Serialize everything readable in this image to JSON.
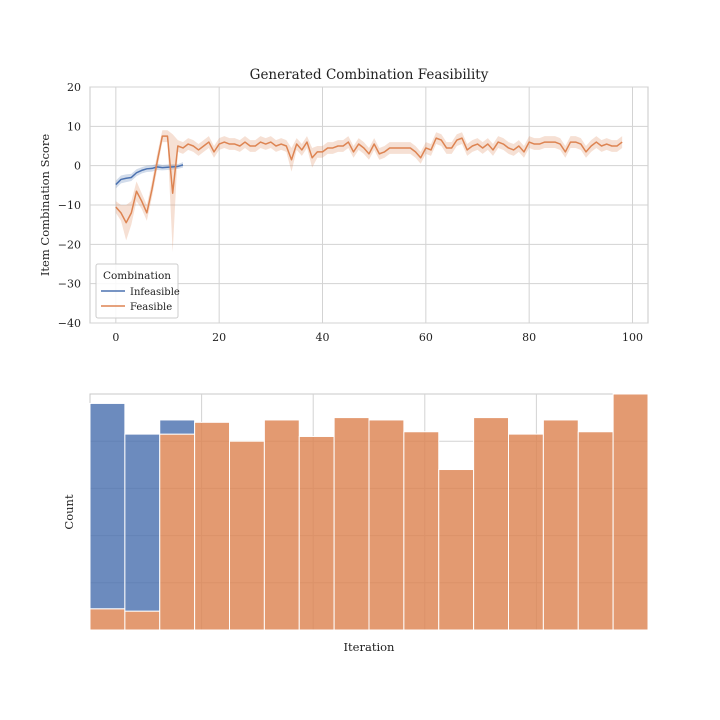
{
  "colors": {
    "infeasible": "#4c72b0",
    "feasible": "#dd8452",
    "grid": "#d3d3d3",
    "frame": "#c8c8c8"
  },
  "chart_data": [
    {
      "type": "line",
      "title": "Generated Combination Feasibility",
      "xlabel": "",
      "ylabel": "Item Combination Score",
      "xlim": [
        -5,
        103
      ],
      "ylim": [
        -40,
        20
      ],
      "xticks": [
        "0",
        "20",
        "40",
        "60",
        "80",
        "100"
      ],
      "xtick_values": [
        0,
        20,
        40,
        60,
        80,
        100
      ],
      "yticks": [
        "20",
        "10",
        "0",
        "−10",
        "−20",
        "−30",
        "−40"
      ],
      "ytick_values": [
        20,
        10,
        0,
        -10,
        -20,
        -30,
        -40
      ],
      "grid": true,
      "legend": {
        "title": "Combination",
        "placement": "lower-left",
        "entries": [
          "Infeasible",
          "Feasible"
        ]
      },
      "series": [
        {
          "name": "Infeasible",
          "color": "#4c72b0",
          "x": [
            0,
            1,
            2,
            3,
            4,
            5,
            6,
            7,
            8,
            9,
            10,
            11,
            12,
            13
          ],
          "y": [
            -4.8,
            -3.5,
            -3.2,
            -3.0,
            -1.8,
            -1.2,
            -0.8,
            -0.7,
            -0.3,
            -0.5,
            -0.4,
            -0.3,
            -0.2,
            0.2
          ],
          "ci_low": [
            -5.8,
            -4.5,
            -4.2,
            -3.9,
            -2.7,
            -2.0,
            -1.6,
            -1.5,
            -1.1,
            -1.2,
            -1.1,
            -1.0,
            -0.8,
            -0.5
          ],
          "ci_high": [
            -3.8,
            -2.5,
            -2.2,
            -2.1,
            -0.9,
            -0.4,
            0.0,
            0.1,
            0.5,
            0.2,
            0.3,
            0.4,
            0.4,
            0.9
          ]
        },
        {
          "name": "Feasible",
          "color": "#dd8452",
          "x": [
            0,
            1,
            2,
            3,
            4,
            5,
            6,
            7,
            8,
            9,
            10,
            11,
            12,
            13,
            14,
            15,
            16,
            17,
            18,
            19,
            20,
            21,
            22,
            23,
            24,
            25,
            26,
            27,
            28,
            29,
            30,
            31,
            32,
            33,
            34,
            35,
            36,
            37,
            38,
            39,
            40,
            41,
            42,
            43,
            44,
            45,
            46,
            47,
            48,
            49,
            50,
            51,
            52,
            53,
            54,
            55,
            56,
            57,
            58,
            59,
            60,
            61,
            62,
            63,
            64,
            65,
            66,
            67,
            68,
            69,
            70,
            71,
            72,
            73,
            74,
            75,
            76,
            77,
            78,
            79,
            80,
            81,
            82,
            83,
            84,
            85,
            86,
            87,
            88,
            89,
            90,
            91,
            92,
            93,
            94,
            95,
            96,
            97,
            98
          ],
          "y": [
            -10.5,
            -12,
            -14.5,
            -12,
            -6.5,
            -9,
            -12,
            -6,
            1,
            7.5,
            7.5,
            -7,
            5,
            4.5,
            5.5,
            5,
            4,
            5,
            6,
            3.5,
            5.5,
            6,
            5.5,
            5.5,
            5,
            6,
            5,
            5,
            6,
            5.5,
            6,
            5,
            5.5,
            5,
            1.5,
            5.5,
            4,
            6,
            2,
            3.5,
            3.5,
            4.5,
            4.5,
            5,
            5,
            6,
            3.5,
            5.5,
            4.5,
            3,
            5.5,
            3,
            3.5,
            4.5,
            4.5,
            4.5,
            4.5,
            4.5,
            3.5,
            2,
            4.5,
            4,
            7,
            6.5,
            4.5,
            4.5,
            6.5,
            7,
            4,
            5,
            5.5,
            4.5,
            5.5,
            4,
            6,
            5.5,
            4.5,
            4,
            5,
            3.5,
            6,
            5.5,
            5.5,
            6,
            6,
            6,
            5.5,
            3.5,
            6,
            6,
            5.5,
            3.5,
            5,
            6,
            5,
            5.5,
            5,
            5,
            6
          ],
          "ci_low": [
            -12,
            -14,
            -19,
            -15,
            -9,
            -11,
            -14,
            -8,
            -1,
            6,
            6,
            -22,
            3.5,
            3,
            4,
            3.5,
            2.5,
            3.5,
            4.5,
            2,
            4,
            4.5,
            4,
            4,
            3.5,
            4.5,
            3.5,
            3.5,
            4.5,
            4,
            4.5,
            3.5,
            4,
            3.5,
            -1.5,
            4,
            2.5,
            4.5,
            -0.5,
            2,
            2,
            3,
            3,
            3.5,
            3.5,
            4.5,
            2,
            4,
            3,
            1.5,
            4,
            1.5,
            2,
            3,
            3,
            3,
            3,
            3,
            2,
            0.5,
            3,
            2.5,
            5.5,
            5,
            3,
            3,
            5,
            5.5,
            2.5,
            3.5,
            4,
            3,
            4,
            2.5,
            4.5,
            4,
            3,
            2.5,
            3.5,
            2,
            4.5,
            4,
            4,
            4.5,
            4.5,
            4.5,
            4,
            2,
            4.5,
            4.5,
            4,
            2,
            3.5,
            4.5,
            3.5,
            4,
            3.5,
            3.5,
            4.5
          ],
          "ci_high": [
            -9,
            -10,
            -10,
            -9,
            -4,
            -7,
            -10,
            -4,
            3,
            9,
            9,
            8,
            6.5,
            6,
            7,
            6.5,
            5.5,
            6.5,
            7.5,
            5,
            7,
            7.5,
            7,
            7,
            6.5,
            7.5,
            6.5,
            6.5,
            7.5,
            7,
            7.5,
            6.5,
            7,
            6.5,
            4.5,
            7,
            5.5,
            7.5,
            4.5,
            5,
            5,
            6,
            6,
            6.5,
            6.5,
            7.5,
            5,
            7,
            6,
            4.5,
            7,
            4.5,
            5,
            6,
            6,
            6,
            6,
            6,
            5,
            3.5,
            6,
            5.5,
            8.5,
            8,
            6,
            6,
            8,
            8.5,
            5.5,
            6.5,
            7,
            6,
            7,
            5.5,
            7.5,
            7,
            6,
            5.5,
            6.5,
            5,
            7.5,
            7,
            7,
            7.5,
            7.5,
            7.5,
            7,
            5,
            7.5,
            7.5,
            7,
            5,
            6.5,
            7.5,
            6.5,
            7,
            6.5,
            6.5,
            7.5
          ]
        }
      ]
    },
    {
      "type": "bar",
      "title": "",
      "xlabel": "Iteration",
      "ylabel": "Count",
      "stacked": true,
      "bins": 16,
      "ylim": [
        0,
        1
      ],
      "grid": true,
      "series": [
        {
          "name": "Feasible",
          "color": "#dd8452",
          "values": [
            0.09,
            0.08,
            0.83,
            0.88,
            0.8,
            0.89,
            0.82,
            0.9,
            0.89,
            0.84,
            0.68,
            0.9,
            0.83,
            0.89,
            0.84,
            1.0
          ]
        },
        {
          "name": "Infeasible",
          "color": "#4c72b0",
          "values": [
            0.87,
            0.75,
            0.06,
            0,
            0,
            0,
            0,
            0,
            0,
            0,
            0,
            0,
            0,
            0,
            0,
            0
          ]
        }
      ]
    }
  ]
}
